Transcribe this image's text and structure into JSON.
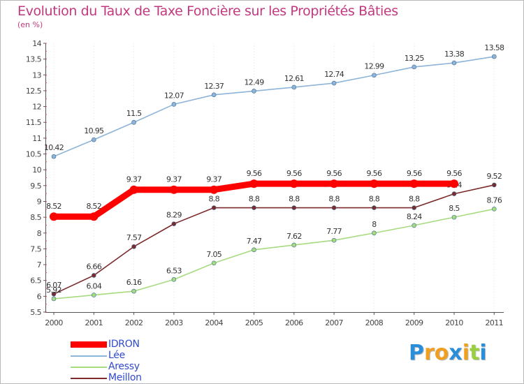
{
  "chart_data": {
    "type": "line",
    "title": "Evolution du Taux de Taxe Foncière sur les Propriétés Bâties",
    "subtitle": "(en %)",
    "xlabel": "",
    "ylabel": "",
    "categories": [
      "2000",
      "2001",
      "2002",
      "2003",
      "2004",
      "2005",
      "2006",
      "2007",
      "2008",
      "2009",
      "2010",
      "2011"
    ],
    "ylim": [
      5.5,
      14
    ],
    "yticks": [
      "5.5",
      "6",
      "6.5",
      "7",
      "7.5",
      "8",
      "8.5",
      "9",
      "9.5",
      "10",
      "10.5",
      "11",
      "11.5",
      "12",
      "12.5",
      "13",
      "13.5",
      "14"
    ],
    "grid": "vertical dotted",
    "legend_position": "bottom-left",
    "series": [
      {
        "name": "Lée",
        "color": "#8eb4d8",
        "values": [
          10.42,
          10.95,
          11.5,
          12.07,
          12.37,
          12.49,
          12.61,
          12.74,
          12.99,
          13.25,
          13.38,
          13.58
        ],
        "labels": [
          "10.42",
          "10.95",
          "11.5",
          "12.07",
          "12.37",
          "12.49",
          "12.61",
          "12.74",
          "12.99",
          "13.25",
          "13.38",
          "13.58"
        ]
      },
      {
        "name": "Meillon",
        "color": "#7b2b2b",
        "values": [
          6.07,
          6.66,
          7.57,
          8.29,
          8.8,
          8.8,
          8.8,
          8.8,
          8.8,
          8.8,
          9.24,
          9.52
        ],
        "labels": [
          "6.07",
          "6.66",
          "7.57",
          "8.29",
          "8.8",
          "8.8",
          "8.8",
          "8.8",
          "8.8",
          "8.8",
          "9.24",
          "9.52"
        ]
      },
      {
        "name": "Aressy",
        "color": "#a6db80",
        "values": [
          5.92,
          6.04,
          6.16,
          6.53,
          7.05,
          7.47,
          7.62,
          7.77,
          8,
          8.24,
          8.5,
          8.76
        ],
        "labels": [
          "5.92",
          "6.04",
          "6.16",
          "6.53",
          "7.05",
          "7.47",
          "7.62",
          "7.77",
          "8",
          "8.24",
          "8.5",
          "8.76"
        ]
      },
      {
        "name": "IDRON",
        "color": "#ff0000",
        "values": [
          8.52,
          8.52,
          9.37,
          9.37,
          9.37,
          9.56,
          9.56,
          9.56,
          9.56,
          9.56,
          9.56,
          null
        ],
        "labels": [
          "8.52",
          "8.52",
          "9.37",
          "9.37",
          "9.37",
          "9.56",
          "9.56",
          "9.56",
          "9.56",
          "9.56",
          "9.56",
          null
        ]
      }
    ],
    "legend": [
      {
        "name": "IDRON",
        "color": "#ff0000",
        "text_color": "#2f4ad0",
        "thick": true
      },
      {
        "name": "Lée",
        "color": "#8eb4d8",
        "text_color": "#2f4ad0",
        "thick": false
      },
      {
        "name": "Aressy",
        "color": "#a6db80",
        "text_color": "#2f4ad0",
        "thick": false
      },
      {
        "name": "Meillon",
        "color": "#7b2b2b",
        "text_color": "#2f4ad0",
        "thick": false
      }
    ]
  },
  "logo": {
    "letters": [
      "P",
      "r",
      "o",
      "x",
      "i",
      "t",
      "i"
    ],
    "colors": [
      "#2a8ed8",
      "#f0a020",
      "#f0a020",
      "#2a8ed8",
      "#f0a020",
      "#9ad040",
      "#2a8ed8"
    ]
  }
}
